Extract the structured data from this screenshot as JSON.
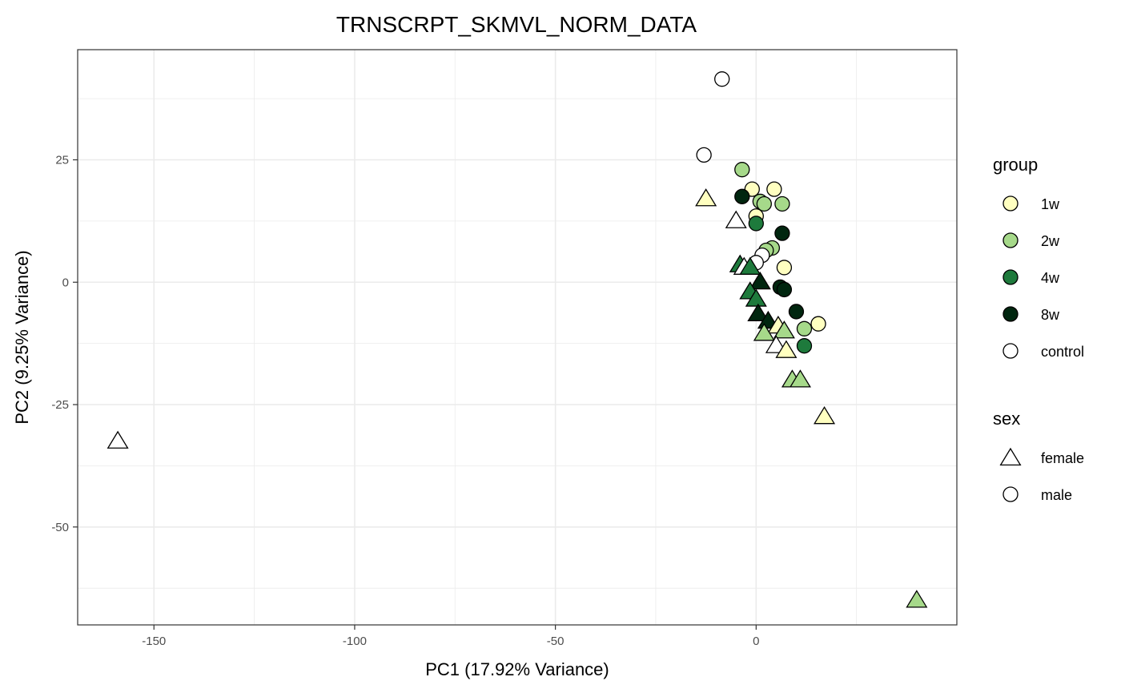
{
  "chart_data": {
    "type": "scatter",
    "title": "TRNSCRPT_SKMVL_NORM_DATA",
    "xlabel": "PC1 (17.92% Variance)",
    "ylabel": "PC2 (9.25% Variance)",
    "xlim": [
      -169,
      50
    ],
    "ylim": [
      -70,
      47.5
    ],
    "x_ticks": [
      -150,
      -100,
      -50,
      0
    ],
    "y_ticks": [
      -50,
      -25,
      0,
      25
    ],
    "grid": true,
    "legend_position": "right",
    "legends": [
      {
        "title": "group",
        "items": [
          {
            "label": "1w",
            "color": "#FFFFC0"
          },
          {
            "label": "2w",
            "color": "#A6D98A"
          },
          {
            "label": "4w",
            "color": "#1E7A3C"
          },
          {
            "label": "8w",
            "color": "#00260F"
          },
          {
            "label": "control",
            "color": "#FFFFFF"
          }
        ]
      },
      {
        "title": "sex",
        "items": [
          {
            "label": "female",
            "shape": "triangle"
          },
          {
            "label": "male",
            "shape": "circle"
          }
        ]
      }
    ],
    "points": [
      {
        "x": -8.5,
        "y": 41.5,
        "group": "control",
        "sex": "male"
      },
      {
        "x": -13,
        "y": 26,
        "group": "control",
        "sex": "male"
      },
      {
        "x": -3.5,
        "y": 23,
        "group": "2w",
        "sex": "male"
      },
      {
        "x": 4.5,
        "y": 19,
        "group": "1w",
        "sex": "male"
      },
      {
        "x": -1,
        "y": 19,
        "group": "1w",
        "sex": "male"
      },
      {
        "x": -3.5,
        "y": 17.5,
        "group": "8w",
        "sex": "male"
      },
      {
        "x": 1,
        "y": 16.5,
        "group": "2w",
        "sex": "male"
      },
      {
        "x": 2,
        "y": 16,
        "group": "2w",
        "sex": "male"
      },
      {
        "x": 6.5,
        "y": 16,
        "group": "2w",
        "sex": "male"
      },
      {
        "x": 0,
        "y": 13.5,
        "group": "1w",
        "sex": "male"
      },
      {
        "x": 0,
        "y": 12,
        "group": "4w",
        "sex": "male"
      },
      {
        "x": 6.5,
        "y": 10,
        "group": "8w",
        "sex": "male"
      },
      {
        "x": 4,
        "y": 7,
        "group": "2w",
        "sex": "male"
      },
      {
        "x": 2.5,
        "y": 6.5,
        "group": "2w",
        "sex": "male"
      },
      {
        "x": 1.5,
        "y": 5.5,
        "group": "control",
        "sex": "male"
      },
      {
        "x": 0,
        "y": 4,
        "group": "control",
        "sex": "male"
      },
      {
        "x": 7,
        "y": 3,
        "group": "1w",
        "sex": "male"
      },
      {
        "x": 6,
        "y": -1,
        "group": "8w",
        "sex": "male"
      },
      {
        "x": 7,
        "y": -1.5,
        "group": "8w",
        "sex": "male"
      },
      {
        "x": 10,
        "y": -6,
        "group": "8w",
        "sex": "male"
      },
      {
        "x": 15.5,
        "y": -8.5,
        "group": "1w",
        "sex": "male"
      },
      {
        "x": 12,
        "y": -9.5,
        "group": "2w",
        "sex": "male"
      },
      {
        "x": 12,
        "y": -13,
        "group": "4w",
        "sex": "male"
      },
      {
        "x": -12.5,
        "y": 17,
        "group": "1w",
        "sex": "female"
      },
      {
        "x": -5,
        "y": 12.5,
        "group": "control",
        "sex": "female"
      },
      {
        "x": -4,
        "y": 3.5,
        "group": "4w",
        "sex": "female"
      },
      {
        "x": -3,
        "y": 3,
        "group": "control",
        "sex": "female"
      },
      {
        "x": -1.5,
        "y": 3,
        "group": "4w",
        "sex": "female"
      },
      {
        "x": 1,
        "y": 0,
        "group": "8w",
        "sex": "female"
      },
      {
        "x": -1.5,
        "y": -2,
        "group": "4w",
        "sex": "female"
      },
      {
        "x": 0,
        "y": -3.5,
        "group": "4w",
        "sex": "female"
      },
      {
        "x": 0.5,
        "y": -6.5,
        "group": "8w",
        "sex": "female"
      },
      {
        "x": 3,
        "y": -8,
        "group": "8w",
        "sex": "female"
      },
      {
        "x": 5.5,
        "y": -9,
        "group": "1w",
        "sex": "female"
      },
      {
        "x": 7,
        "y": -10,
        "group": "2w",
        "sex": "female"
      },
      {
        "x": 2,
        "y": -10.5,
        "group": "2w",
        "sex": "female"
      },
      {
        "x": 5,
        "y": -13,
        "group": "control",
        "sex": "female"
      },
      {
        "x": 7.5,
        "y": -14,
        "group": "1w",
        "sex": "female"
      },
      {
        "x": 9,
        "y": -20,
        "group": "2w",
        "sex": "female"
      },
      {
        "x": 11,
        "y": -20,
        "group": "2w",
        "sex": "female"
      },
      {
        "x": 17,
        "y": -27.5,
        "group": "1w",
        "sex": "female"
      },
      {
        "x": -159,
        "y": -32.5,
        "group": "control",
        "sex": "female"
      },
      {
        "x": 40,
        "y": -65,
        "group": "2w",
        "sex": "female"
      }
    ]
  }
}
